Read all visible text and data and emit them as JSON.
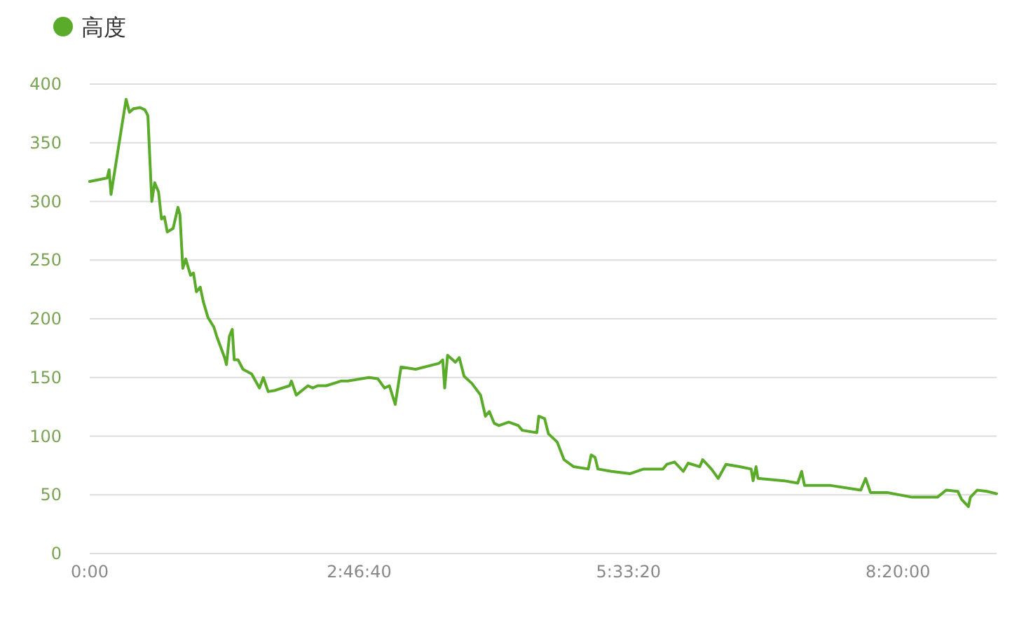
{
  "chart_data": {
    "type": "line",
    "legend": "top left",
    "grid": "y",
    "marker": "none",
    "line_style": "solid",
    "xlim": [
      0,
      9.35
    ],
    "ylim": [
      0,
      400
    ],
    "xticks": [
      {
        "value": 0,
        "label": "0:00"
      },
      {
        "value": 2.7778,
        "label": "2:46:40"
      },
      {
        "value": 5.5556,
        "label": "5:33:20"
      },
      {
        "value": 8.3333,
        "label": "8:20:00"
      }
    ],
    "yticks": [
      0,
      50,
      100,
      150,
      200,
      250,
      300,
      350,
      400
    ],
    "series": [
      {
        "name": "高度",
        "color": "#5aab2a",
        "x": [
          0,
          0.18,
          0.2,
          0.22,
          0.3,
          0.375,
          0.41,
          0.45,
          0.52,
          0.57,
          0.6,
          0.64,
          0.67,
          0.71,
          0.74,
          0.77,
          0.8,
          0.86,
          0.91,
          0.93,
          0.96,
          0.99,
          1.04,
          1.07,
          1.1,
          1.14,
          1.17,
          1.22,
          1.25,
          1.28,
          1.31,
          1.39,
          1.41,
          1.44,
          1.47,
          1.49,
          1.53,
          1.58,
          1.67,
          1.75,
          1.79,
          1.84,
          1.91,
          2.06,
          2.08,
          2.13,
          2.25,
          2.3,
          2.35,
          2.44,
          2.59,
          2.66,
          2.88,
          2.97,
          3.04,
          3.09,
          3.15,
          3.21,
          3.36,
          3.6,
          3.64,
          3.66,
          3.69,
          3.77,
          3.81,
          3.86,
          3.94,
          4.03,
          4.08,
          4.12,
          4.17,
          4.22,
          4.32,
          4.42,
          4.46,
          4.61,
          4.63,
          4.69,
          4.73,
          4.82,
          4.89,
          4.99,
          5.14,
          5.17,
          5.21,
          5.24,
          5.38,
          5.57,
          5.71,
          5.91,
          5.95,
          6.03,
          6.12,
          6.17,
          6.29,
          6.32,
          6.41,
          6.48,
          6.56,
          6.7,
          6.82,
          6.84,
          6.87,
          6.89,
          7.16,
          7.3,
          7.34,
          7.37,
          7.64,
          7.95,
          8.0,
          8.05,
          8.22,
          8.48,
          8.6,
          8.74,
          8.83,
          8.95,
          8.99,
          9.06,
          9.08,
          9.15,
          9.25,
          9.35
        ],
        "values": [
          317,
          320,
          327,
          306,
          348,
          387,
          376,
          379,
          380,
          378,
          373,
          300,
          316,
          308,
          285,
          287,
          274,
          277,
          295,
          289,
          243,
          251,
          237,
          239,
          223,
          227,
          215,
          201,
          197,
          193,
          185,
          167,
          161,
          185,
          191,
          165,
          165,
          157,
          153,
          141,
          150,
          138,
          139,
          143,
          147,
          135,
          143,
          141,
          143,
          143,
          147,
          147,
          150,
          149,
          141,
          143,
          127,
          159,
          157,
          162,
          165,
          141,
          169,
          163,
          167,
          151,
          145,
          135,
          117,
          121,
          111,
          109,
          112,
          109,
          105,
          103,
          117,
          115,
          102,
          95,
          80,
          74,
          72,
          84,
          82,
          72,
          70,
          68,
          72,
          72,
          76,
          78,
          70,
          77,
          74,
          80,
          72,
          64,
          76,
          74,
          72,
          62,
          74,
          64,
          62,
          60,
          70,
          58,
          58,
          54,
          64,
          52,
          52,
          48,
          48,
          48,
          54,
          53,
          46,
          40,
          48,
          54,
          53,
          51
        ]
      }
    ]
  }
}
